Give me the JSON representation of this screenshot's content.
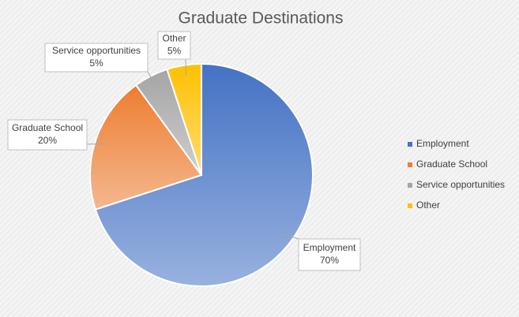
{
  "chart_data": {
    "type": "pie",
    "title": "Graduate Destinations",
    "categories": [
      "Employment",
      "Graduate School",
      "Service opportunities",
      "Other"
    ],
    "values": [
      70,
      20,
      5,
      5
    ],
    "value_labels": [
      "70%",
      "20%",
      "5%",
      "5%"
    ],
    "colors": [
      "#4472c4",
      "#ed7d31",
      "#a5a5a5",
      "#ffc000"
    ],
    "legend": "right"
  }
}
